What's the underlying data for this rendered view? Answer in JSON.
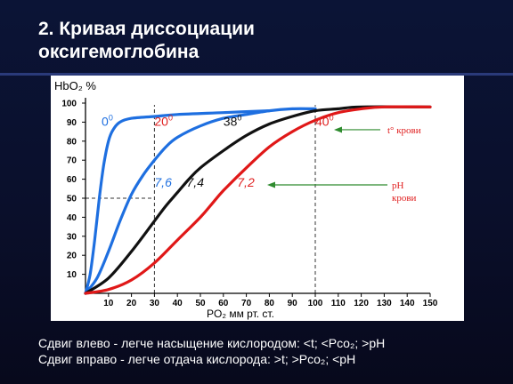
{
  "slide": {
    "title_line1": "2. Кривая диссоциации",
    "title_line2": "оксигемоглобина",
    "caption_line1": "Сдвиг влево - легче насыщение кислородом: <t; <Pco₂; >pH",
    "caption_line2": "Сдвиг вправо - легче отдача кислорода: >t; >Pco₂; <pH"
  },
  "colors": {
    "slide_background": "#0a0f2b",
    "plot_background": "#ffffff",
    "title_text": "#ffffff",
    "blue_curves": "#1e6fe0",
    "black_curve": "#111111",
    "red_curve": "#e01818",
    "annotation_red": "#e02020",
    "arrow_green": "#2e8b2e"
  },
  "chart_data": {
    "type": "line",
    "title": "",
    "ylabel": "HbO₂  %",
    "xlabel": "PO₂   мм рт. ст.",
    "xlim": [
      0,
      150
    ],
    "ylim": [
      0,
      100
    ],
    "x_ticks": [
      10,
      20,
      30,
      40,
      50,
      60,
      70,
      80,
      90,
      100,
      110,
      120,
      130,
      140,
      150
    ],
    "y_ticks": [
      10,
      20,
      30,
      40,
      50,
      60,
      70,
      80,
      90,
      100
    ],
    "grid": false,
    "reference_lines": {
      "vertical_dashed_at_x": [
        30,
        100
      ],
      "horizontal_dashed_at_y": [
        50
      ]
    },
    "series": [
      {
        "color_key": "blue_curves",
        "points": [
          [
            0,
            0
          ],
          [
            2,
            10
          ],
          [
            4,
            28
          ],
          [
            6,
            50
          ],
          [
            8,
            68
          ],
          [
            10,
            80
          ],
          [
            12,
            86
          ],
          [
            15,
            90
          ],
          [
            20,
            92
          ],
          [
            30,
            93
          ],
          [
            40,
            94
          ],
          [
            60,
            95
          ],
          [
            80,
            96
          ]
        ]
      },
      {
        "color_key": "blue_curves",
        "points": [
          [
            0,
            0
          ],
          [
            5,
            8
          ],
          [
            10,
            22
          ],
          [
            15,
            38
          ],
          [
            20,
            52
          ],
          [
            25,
            62
          ],
          [
            30,
            70
          ],
          [
            35,
            77
          ],
          [
            40,
            82
          ],
          [
            50,
            88
          ],
          [
            60,
            92
          ],
          [
            70,
            94
          ],
          [
            80,
            96
          ],
          [
            90,
            97
          ],
          [
            100,
            97
          ]
        ]
      },
      {
        "color_key": "black_curve",
        "points": [
          [
            0,
            0
          ],
          [
            10,
            8
          ],
          [
            20,
            22
          ],
          [
            30,
            38
          ],
          [
            35,
            46
          ],
          [
            40,
            53
          ],
          [
            45,
            60
          ],
          [
            50,
            66
          ],
          [
            60,
            75
          ],
          [
            70,
            83
          ],
          [
            80,
            89
          ],
          [
            90,
            93
          ],
          [
            100,
            96
          ],
          [
            110,
            97
          ],
          [
            120,
            98
          ],
          [
            150,
            98
          ]
        ]
      },
      {
        "color_key": "red_curve",
        "points": [
          [
            0,
            0
          ],
          [
            10,
            2
          ],
          [
            20,
            7
          ],
          [
            30,
            16
          ],
          [
            40,
            28
          ],
          [
            50,
            40
          ],
          [
            55,
            47
          ],
          [
            60,
            54
          ],
          [
            70,
            66
          ],
          [
            80,
            77
          ],
          [
            90,
            85
          ],
          [
            100,
            91
          ],
          [
            110,
            95
          ],
          [
            120,
            97
          ],
          [
            130,
            98
          ],
          [
            150,
            98
          ]
        ]
      }
    ],
    "temperature_labels": [
      {
        "text": "0",
        "sup": "0",
        "color_key": "blue_curves",
        "x": 7,
        "y": 88
      },
      {
        "text": "20",
        "sup": "0",
        "color_key": "annotation_red",
        "x": 30,
        "y": 88
      },
      {
        "text": "38",
        "sup": "0",
        "color_key": "black_curve",
        "x": 60,
        "y": 88
      },
      {
        "text": "40",
        "sup": "0",
        "color_key": "annotation_red",
        "x": 100,
        "y": 88
      }
    ],
    "ph_labels": [
      {
        "text": "7,6",
        "color_key": "blue_curves",
        "x": 30,
        "y": 56
      },
      {
        "text": "7,4",
        "color_key": "black_curve",
        "x": 44,
        "y": 56
      },
      {
        "text": "7,2",
        "color_key": "annotation_red",
        "x": 66,
        "y": 56
      }
    ],
    "annotations": {
      "temperature": "t° крови",
      "ph_line1": "pH",
      "ph_line2": "крови"
    }
  }
}
